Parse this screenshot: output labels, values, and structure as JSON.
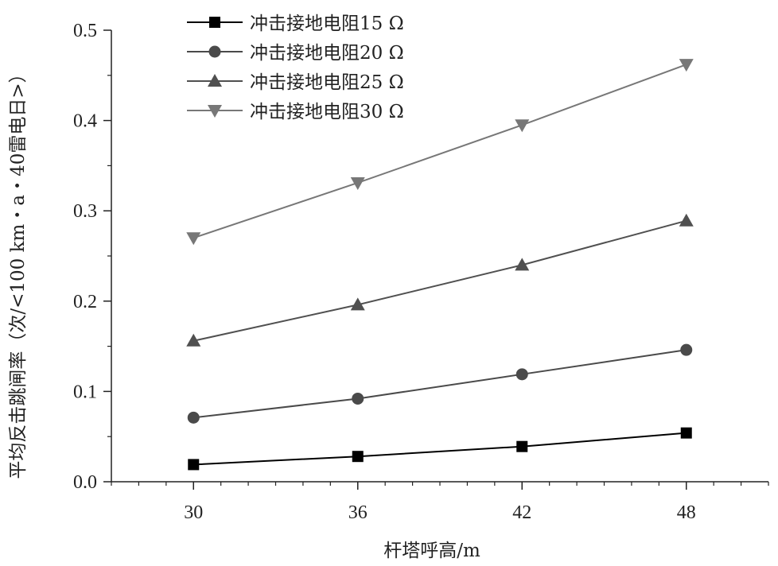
{
  "chart_data": {
    "type": "line",
    "x": [
      30,
      36,
      42,
      48
    ],
    "xlabel": "杆塔呼高/m",
    "ylabel": "平均反击跳闸率（次/<100 km・a・40雷电日>）",
    "xlim": [
      27,
      51
    ],
    "ylim": [
      0.0,
      0.5
    ],
    "xticks": [
      30,
      36,
      42,
      48
    ],
    "yticks": [
      0.0,
      0.1,
      0.2,
      0.3,
      0.4,
      0.5
    ],
    "ytick_labels": [
      "0.0",
      "0.1",
      "0.2",
      "0.3",
      "0.4",
      "0.5"
    ],
    "grid": false,
    "legend_position": "top-left",
    "series": [
      {
        "name": "冲击接地电阻15 Ω",
        "marker": "square",
        "color": "#000000",
        "values": [
          0.019,
          0.028,
          0.039,
          0.054
        ]
      },
      {
        "name": "冲击接地电阻20 Ω",
        "marker": "circle",
        "color": "#4a4a4a",
        "values": [
          0.071,
          0.092,
          0.119,
          0.146
        ]
      },
      {
        "name": "冲击接地电阻25 Ω",
        "marker": "triangle-up",
        "color": "#505050",
        "values": [
          0.156,
          0.196,
          0.24,
          0.289
        ]
      },
      {
        "name": "冲击接地电阻30 Ω",
        "marker": "triangle-down",
        "color": "#777777",
        "values": [
          0.27,
          0.331,
          0.395,
          0.462
        ]
      }
    ]
  }
}
